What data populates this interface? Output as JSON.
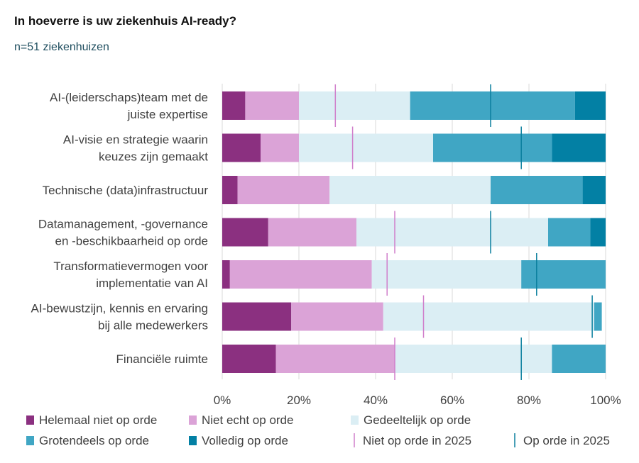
{
  "title": "In hoeverre is uw ziekenhuis AI-ready?",
  "subtitle": "n=51 ziekenhuizen",
  "chart_data": {
    "type": "bar",
    "orientation": "horizontal",
    "stacked": "100%",
    "categories": [
      [
        "AI-(leiderschaps)team met de",
        "juiste expertise"
      ],
      [
        "AI-visie en strategie waarin",
        "keuzes zijn gemaakt"
      ],
      [
        "Technische (data)infrastructuur"
      ],
      [
        "Datamanagement, -governance",
        "en -beschikbaarheid op orde"
      ],
      [
        "Transformatievermogen voor",
        "implementatie van AI"
      ],
      [
        "AI-bewustzijn, kennis en ervaring",
        "bij alle medewerkers"
      ],
      [
        "Financiële ruimte"
      ]
    ],
    "series": [
      {
        "name": "Helemaal niet op orde",
        "color": "#8b3080",
        "values": [
          6,
          10,
          4,
          12,
          2,
          18,
          14
        ]
      },
      {
        "name": "Niet echt op orde",
        "color": "#dba3d7",
        "values": [
          14,
          10,
          24,
          23,
          37,
          24,
          31
        ]
      },
      {
        "name": "Gedeeltelijk op orde",
        "color": "#dbeef4",
        "values": [
          29,
          35,
          42,
          50,
          39,
          55,
          41
        ]
      },
      {
        "name": "Grotendeels op orde",
        "color": "#40a6c4",
        "values": [
          43,
          31,
          24,
          11,
          22,
          2,
          14
        ]
      },
      {
        "name": "Volledig op orde",
        "color": "#0380a4",
        "values": [
          8,
          14,
          6,
          4,
          0,
          0,
          0
        ]
      }
    ],
    "markers": [
      {
        "name": "Niet op orde in 2025",
        "color": "#d07fcb",
        "values": [
          29.5,
          34,
          null,
          45,
          43,
          52.5,
          45
        ]
      },
      {
        "name": "Op orde in 2025",
        "color": "#0b7f9e",
        "values": [
          70,
          78,
          null,
          70,
          82,
          96.5,
          78
        ]
      }
    ],
    "xticks": [
      "0%",
      "20%",
      "40%",
      "60%",
      "80%",
      "100%"
    ],
    "xlim": [
      0,
      100
    ],
    "grid": true,
    "legend": "bottom"
  }
}
